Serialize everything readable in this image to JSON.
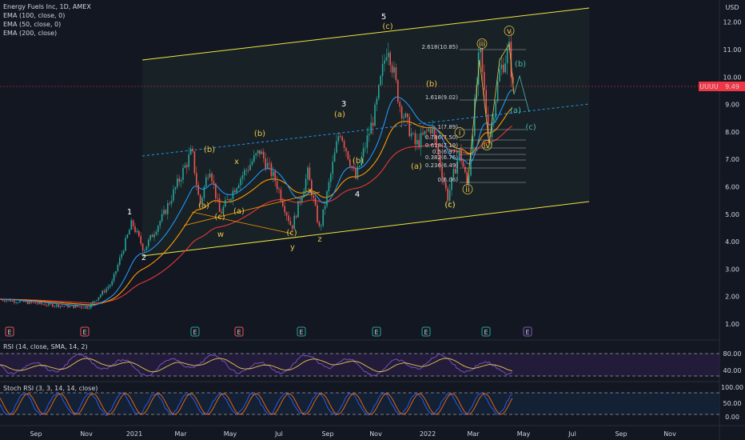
{
  "header": {
    "symbol_line": "Energy Fuels Inc, 1D, AMEX",
    "indicators": [
      "EMA (100, close, 0)",
      "EMA (50, close, 0)",
      "EMA (200, close)"
    ]
  },
  "price_axis": {
    "currency": "USD",
    "ticks": [
      "12.00",
      "11.00",
      "10.00",
      "9.00",
      "8.00",
      "7.00",
      "6.00",
      "5.00",
      "4.00",
      "3.00",
      "2.00",
      "1.00"
    ],
    "last_ticker": "UUUU",
    "last_price": "9.49"
  },
  "time_axis": {
    "ticks": [
      "Sep",
      "Nov",
      "2021",
      "Mar",
      "May",
      "Jul",
      "Sep",
      "Nov",
      "2022",
      "Mar",
      "May",
      "Jul",
      "Sep",
      "Nov"
    ]
  },
  "rsi": {
    "label": "RSI (14, close, SMA, 14, 2)",
    "ticks": [
      "80.00",
      "40.00"
    ]
  },
  "stoch": {
    "label": "Stoch RSI (3, 3, 14, 14, close)",
    "ticks": [
      "100.00",
      "50.00",
      "0.00"
    ]
  },
  "waves": [
    "1",
    "2",
    "3",
    "4",
    "5",
    "(a)",
    "(b)",
    "(c)",
    "(a)",
    "(b)",
    "(c)",
    "w",
    "x",
    "y",
    "z",
    "(a)",
    "(b)",
    "(c)",
    "x",
    "(c)",
    "(a)",
    "(b)",
    "(c)",
    "i",
    "ii",
    "iii",
    "iv",
    "v",
    "(a)",
    "(b)",
    "(c)"
  ],
  "fib_levels": [
    "2.618(10.85)",
    "1.618(9.02)",
    "1(7.89)",
    "0.786(7.50)",
    "0.618(7.19)",
    "0.5(6.97)",
    "0.382(6.76)",
    "0.236(6.49)",
    "0(6.06)"
  ],
  "event_markers": [
    "E",
    "E",
    "E",
    "E",
    "E",
    "E",
    "E",
    "E",
    "E"
  ],
  "colors": {
    "background": "#131722",
    "up": "#26a69a",
    "down": "#ef5350",
    "channel": "#f0e442",
    "ema50": "#2196f3",
    "ema100": "#ff9800",
    "ema200": "#e53935",
    "rsi_line": "#7e57c2",
    "label_accent": "#e8c547",
    "price_badge": "#f23645"
  }
}
